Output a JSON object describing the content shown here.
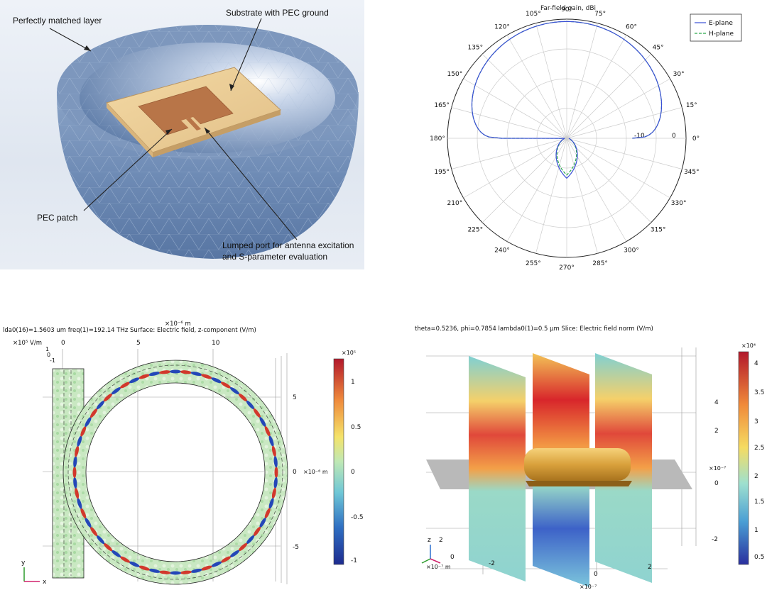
{
  "antenna": {
    "label_pml": "Perfectly matched layer",
    "label_substrate": "Substrate with PEC ground",
    "label_patch": "PEC patch",
    "label_port_line1": "Lumped port for antenna excitation",
    "label_port_line2": "and S-parameter evaluation"
  },
  "polar": {
    "title": "Far-field gain, dBi",
    "angle_labels": [
      "0°",
      "15°",
      "30°",
      "45°",
      "60°",
      "75°",
      "90°",
      "105°",
      "120°",
      "135°",
      "150°",
      "165°",
      "180°",
      "195°",
      "210°",
      "225°",
      "240°",
      "255°",
      "270°",
      "285°",
      "300°",
      "315°",
      "330°",
      "345°"
    ],
    "radial_labels": [
      "-10",
      "0"
    ],
    "legend": [
      {
        "name": "E-plane",
        "color": "#3a4fd6"
      },
      {
        "name": "H-plane",
        "color": "#2aa84a"
      }
    ]
  },
  "ring": {
    "title": "lda0(16)=1.5603 um freq(1)=192.14 THz  Surface: Electric field, z-component (V/m)",
    "x_unit": "×10⁻⁶ m",
    "x_ticks": [
      "0",
      "5",
      "10"
    ],
    "y_ticks": [
      "5",
      "0",
      "-5"
    ],
    "y_unit": "×10⁻⁶ m",
    "scale_label": "×10⁵ V/m",
    "scale_ticks": [
      "1",
      "0.5",
      "0",
      "-0.5",
      "-1"
    ],
    "scale_exp": "×10⁵",
    "corner_ticks": [
      "1",
      "0",
      "-1"
    ]
  },
  "slice": {
    "title": "theta=0.5236, phi=0.7854 lambda0(1)=0.5 μm  Slice: Electric field norm (V/m)",
    "y_ticks": [
      "4",
      "2",
      "0",
      "-2"
    ],
    "y_unit": "×10⁻⁷",
    "x_ticks": [
      "-2",
      "0",
      "2"
    ],
    "x_unit": "×10⁻⁷",
    "z_ticks": [
      "2",
      "0",
      "-2"
    ],
    "z_unit": "×10⁻⁷ m",
    "scale_exp": "×10⁴",
    "scale_ticks": [
      "4",
      "3.5",
      "3",
      "2.5",
      "2",
      "1.5",
      "1",
      "0.5"
    ]
  }
}
